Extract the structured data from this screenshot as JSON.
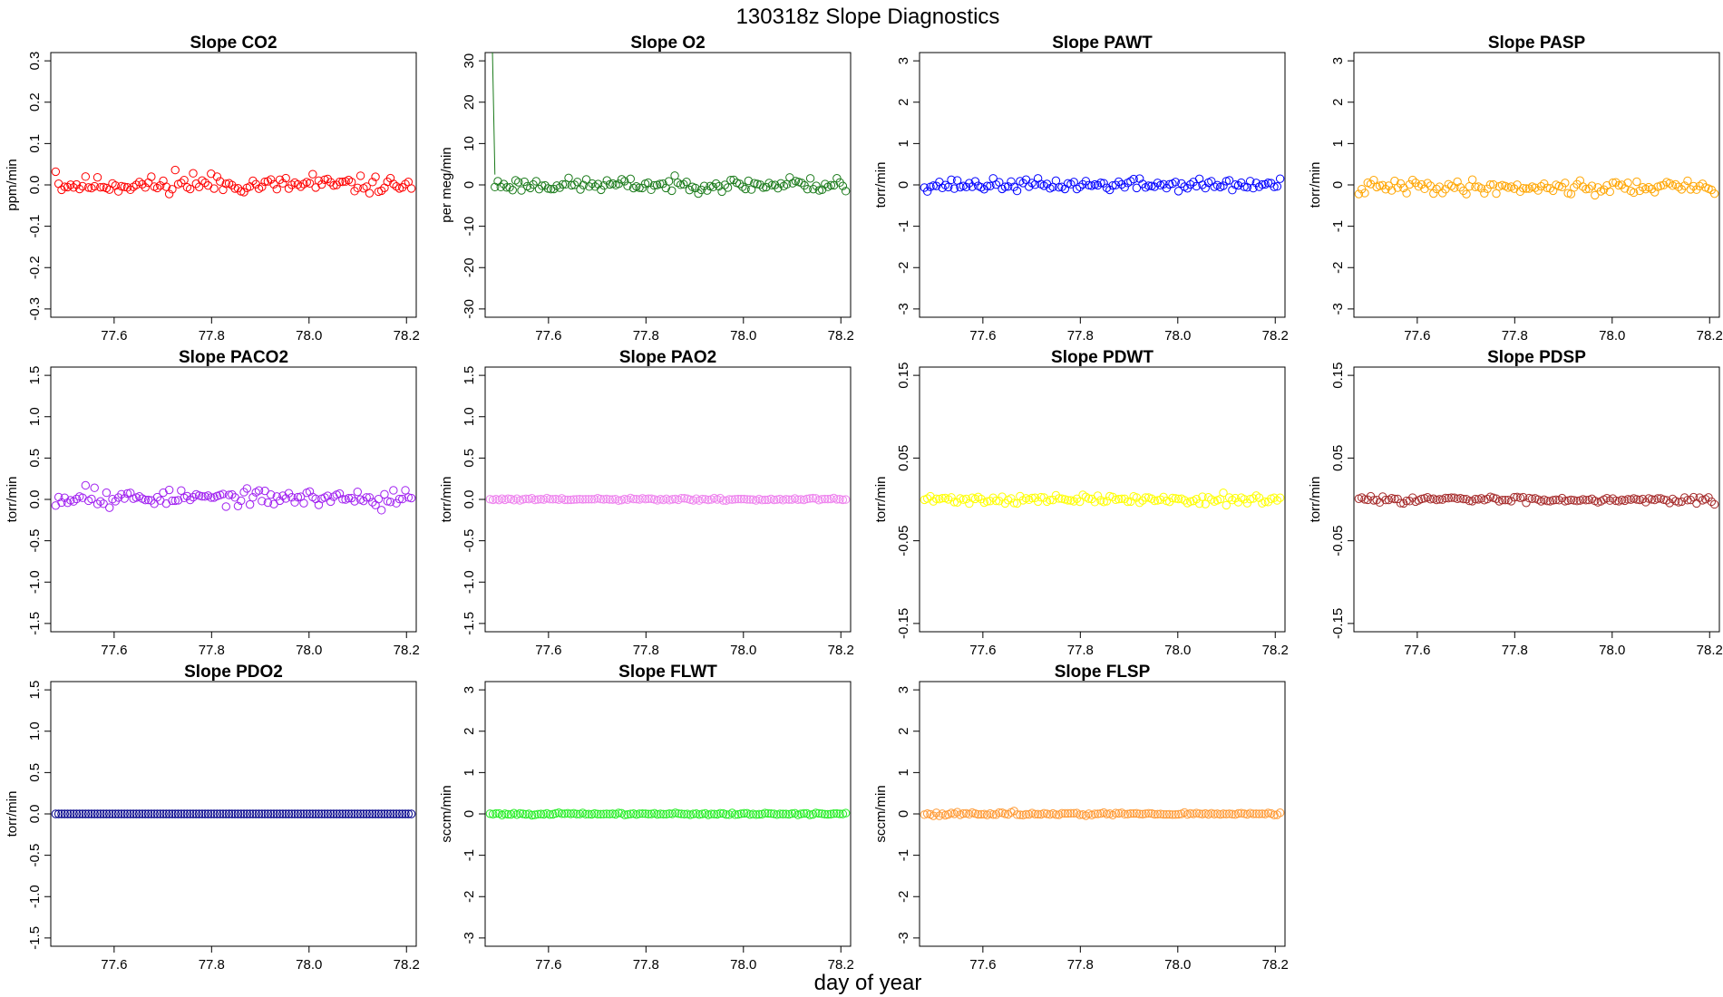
{
  "title": "130318z   Slope Diagnostics",
  "xlabel": "day of year",
  "chart_data": [
    {
      "type": "scatter",
      "title": "Slope CO2",
      "ylabel": "ppm/min",
      "color": "#ff0000",
      "xlim": [
        77.47,
        78.22
      ],
      "xticks": [
        77.6,
        77.8,
        78.0,
        78.2
      ],
      "xtick_labels": [
        "77.6",
        "77.8",
        "78.0",
        "78.2"
      ],
      "ylim": [
        -0.32,
        0.32
      ],
      "yticks": [
        -0.3,
        -0.2,
        -0.1,
        0.0,
        0.1,
        0.2,
        0.3
      ],
      "ytick_labels": [
        "-0.3",
        "-0.2",
        "-0.1",
        "0.0",
        "0.1",
        "0.2",
        "0.3"
      ],
      "x_start": 77.48,
      "x_end": 78.21,
      "n": 120,
      "level": 0.0,
      "noise": 0.01,
      "seed": 11,
      "outliers": [
        {
          "i": 0,
          "y": 0.032
        },
        {
          "i": 40,
          "y": 0.036
        },
        {
          "i": 46,
          "y": 0.028
        },
        {
          "i": 52,
          "y": 0.027
        },
        {
          "i": 86,
          "y": 0.026
        },
        {
          "i": 38,
          "y": -0.022
        },
        {
          "i": 105,
          "y": -0.02
        }
      ]
    },
    {
      "type": "scatter",
      "title": "Slope O2",
      "ylabel": "per meg/min",
      "color": "#1a7a1a",
      "xlim": [
        77.47,
        78.22
      ],
      "xticks": [
        77.6,
        77.8,
        78.0,
        78.2
      ],
      "xtick_labels": [
        "77.6",
        "77.8",
        "78.0",
        "78.2"
      ],
      "ylim": [
        -32,
        32
      ],
      "yticks": [
        -30,
        -20,
        -10,
        0,
        10,
        20,
        30
      ],
      "ytick_labels": [
        "-30",
        "-20",
        "-10",
        "0",
        "10",
        "20",
        "30"
      ],
      "x_start": 77.49,
      "x_end": 78.21,
      "n": 120,
      "level": 0.0,
      "noise": 0.8,
      "seed": 23,
      "spike": {
        "x_top": 77.485,
        "x_bottom": 77.49,
        "y_bottom": 2.5
      },
      "outliers": [
        {
          "i": 100,
          "y": 1.8
        },
        {
          "i": 116,
          "y": 1.6
        },
        {
          "i": 119,
          "y": -1.5
        }
      ]
    },
    {
      "type": "scatter",
      "title": "Slope PAWT",
      "ylabel": "torr/min",
      "color": "#0000ff",
      "xlim": [
        77.47,
        78.22
      ],
      "xticks": [
        77.6,
        77.8,
        78.0,
        78.2
      ],
      "xtick_labels": [
        "77.6",
        "77.8",
        "78.0",
        "78.2"
      ],
      "ylim": [
        -3.2,
        3.2
      ],
      "yticks": [
        -3,
        -2,
        -1,
        0,
        1,
        2,
        3
      ],
      "ytick_labels": [
        "-3",
        "-2",
        "-1",
        "0",
        "1",
        "2",
        "3"
      ],
      "x_start": 77.48,
      "x_end": 78.21,
      "n": 120,
      "level": 0.0,
      "noise": 0.07,
      "seed": 37,
      "outliers": [
        {
          "i": 119,
          "y": 0.15
        },
        {
          "i": 70,
          "y": 0.14
        }
      ]
    },
    {
      "type": "scatter",
      "title": "Slope PASP",
      "ylabel": "torr/min",
      "color": "#ffa500",
      "xlim": [
        77.47,
        78.22
      ],
      "xticks": [
        77.6,
        77.8,
        78.0,
        78.2
      ],
      "xtick_labels": [
        "77.6",
        "77.8",
        "78.0",
        "78.2"
      ],
      "ylim": [
        -3.2,
        3.2
      ],
      "yticks": [
        -3,
        -2,
        -1,
        0,
        1,
        2,
        3
      ],
      "ytick_labels": [
        "-3",
        "-2",
        "-1",
        "0",
        "1",
        "2",
        "3"
      ],
      "x_start": 77.48,
      "x_end": 78.21,
      "n": 120,
      "level": -0.05,
      "noise": 0.08,
      "seed": 41,
      "outliers": [
        {
          "i": 0,
          "y": -0.22
        },
        {
          "i": 18,
          "y": 0.12
        },
        {
          "i": 79,
          "y": -0.25
        }
      ]
    },
    {
      "type": "scatter",
      "title": "Slope PACO2",
      "ylabel": "torr/min",
      "color": "#a020f0",
      "xlim": [
        77.47,
        78.22
      ],
      "xticks": [
        77.6,
        77.8,
        78.0,
        78.2
      ],
      "xtick_labels": [
        "77.6",
        "77.8",
        "78.0",
        "78.2"
      ],
      "ylim": [
        -1.6,
        1.6
      ],
      "yticks": [
        -1.5,
        -1.0,
        -0.5,
        0.0,
        0.5,
        1.0,
        1.5
      ],
      "ytick_labels": [
        "-1.5",
        "-1.0",
        "-0.5",
        "0.0",
        "0.5",
        "1.0",
        "1.5"
      ],
      "x_start": 77.48,
      "x_end": 78.21,
      "n": 120,
      "level": 0.02,
      "noise": 0.045,
      "seed": 53,
      "outliers": [
        {
          "i": 10,
          "y": 0.17
        },
        {
          "i": 13,
          "y": 0.14
        },
        {
          "i": 18,
          "y": -0.1
        },
        {
          "i": 113,
          "y": 0.11
        },
        {
          "i": 109,
          "y": -0.13
        }
      ]
    },
    {
      "type": "scatter",
      "title": "Slope PAO2",
      "ylabel": "torr/min",
      "color": "#ee82ee",
      "xlim": [
        77.47,
        78.22
      ],
      "xticks": [
        77.6,
        77.8,
        78.0,
        78.2
      ],
      "xtick_labels": [
        "77.6",
        "77.8",
        "78.0",
        "78.2"
      ],
      "ylim": [
        -1.6,
        1.6
      ],
      "yticks": [
        -1.5,
        -1.0,
        -0.5,
        0.0,
        0.5,
        1.0,
        1.5
      ],
      "ytick_labels": [
        "-1.5",
        "-1.0",
        "-0.5",
        "0.0",
        "0.5",
        "1.0",
        "1.5"
      ],
      "x_start": 77.48,
      "x_end": 78.21,
      "n": 120,
      "level": 0.0,
      "noise": 0.008,
      "seed": 61,
      "outliers": []
    },
    {
      "type": "scatter",
      "title": "Slope PDWT",
      "ylabel": "torr/min",
      "color": "#ffff00",
      "xlim": [
        77.47,
        78.22
      ],
      "xticks": [
        77.6,
        77.8,
        78.0,
        78.2
      ],
      "xtick_labels": [
        "77.6",
        "77.8",
        "78.0",
        "78.2"
      ],
      "ylim": [
        -0.16,
        0.16
      ],
      "yticks": [
        -0.15,
        -0.05,
        0.05,
        0.15
      ],
      "ytick_labels": [
        "-0.15",
        "-0.05",
        "0.05",
        "0.15"
      ],
      "x_start": 77.48,
      "x_end": 78.21,
      "n": 120,
      "level": 0.0,
      "noise": 0.0025,
      "seed": 71,
      "outliers": [
        {
          "i": 100,
          "y": 0.008
        },
        {
          "i": 101,
          "y": -0.007
        }
      ]
    },
    {
      "type": "scatter",
      "title": "Slope PDSP",
      "ylabel": "torr/min",
      "color": "#a52a2a",
      "xlim": [
        77.47,
        78.22
      ],
      "xticks": [
        77.6,
        77.8,
        78.0,
        78.2
      ],
      "xtick_labels": [
        "77.6",
        "77.8",
        "78.0",
        "78.2"
      ],
      "ylim": [
        -0.16,
        0.16
      ],
      "yticks": [
        -0.15,
        -0.05,
        0.05,
        0.15
      ],
      "ytick_labels": [
        "-0.15",
        "-0.05",
        "0.05",
        "0.15"
      ],
      "x_start": 77.48,
      "x_end": 78.21,
      "n": 120,
      "level": 0.0,
      "noise": 0.0018,
      "seed": 83,
      "outliers": [
        {
          "i": 119,
          "y": -0.006
        }
      ]
    },
    {
      "type": "scatter",
      "title": "Slope PDO2",
      "ylabel": "torr/min",
      "color": "#00008b",
      "xlim": [
        77.47,
        78.22
      ],
      "xticks": [
        77.6,
        77.8,
        78.0,
        78.2
      ],
      "xtick_labels": [
        "77.6",
        "77.8",
        "78.0",
        "78.2"
      ],
      "ylim": [
        -1.6,
        1.6
      ],
      "yticks": [
        -1.5,
        -1.0,
        -0.5,
        0.0,
        0.5,
        1.0,
        1.5
      ],
      "ytick_labels": [
        "-1.5",
        "-1.0",
        "-0.5",
        "0.0",
        "0.5",
        "1.0",
        "1.5"
      ],
      "x_start": 77.48,
      "x_end": 78.21,
      "n": 120,
      "level": 0.0,
      "noise": 0.0,
      "seed": 97,
      "outliers": []
    },
    {
      "type": "scatter",
      "title": "Slope FLWT",
      "ylabel": "sccm/min",
      "color": "#22ee22",
      "xlim": [
        77.47,
        78.22
      ],
      "xticks": [
        77.6,
        77.8,
        78.0,
        78.2
      ],
      "xtick_labels": [
        "77.6",
        "77.8",
        "78.0",
        "78.2"
      ],
      "ylim": [
        -3.2,
        3.2
      ],
      "yticks": [
        -3,
        -2,
        -1,
        0,
        1,
        2,
        3
      ],
      "ytick_labels": [
        "-3",
        "-2",
        "-1",
        "0",
        "1",
        "2",
        "3"
      ],
      "x_start": 77.48,
      "x_end": 78.21,
      "n": 120,
      "level": 0.0,
      "noise": 0.012,
      "seed": 101,
      "outliers": []
    },
    {
      "type": "scatter",
      "title": "Slope FLSP",
      "ylabel": "sccm/min",
      "color": "#ff9933",
      "xlim": [
        77.47,
        78.22
      ],
      "xticks": [
        77.6,
        77.8,
        78.0,
        78.2
      ],
      "xtick_labels": [
        "77.6",
        "77.8",
        "78.0",
        "78.2"
      ],
      "ylim": [
        -3.2,
        3.2
      ],
      "yticks": [
        -3,
        -2,
        -1,
        0,
        1,
        2,
        3
      ],
      "ytick_labels": [
        "-3",
        "-2",
        "-1",
        "0",
        "1",
        "2",
        "3"
      ],
      "x_start": 77.48,
      "x_end": 78.21,
      "n": 120,
      "level": 0.0,
      "noise": 0.018,
      "seed": 113,
      "outliers": [
        {
          "i": 30,
          "y": 0.07
        }
      ]
    }
  ]
}
